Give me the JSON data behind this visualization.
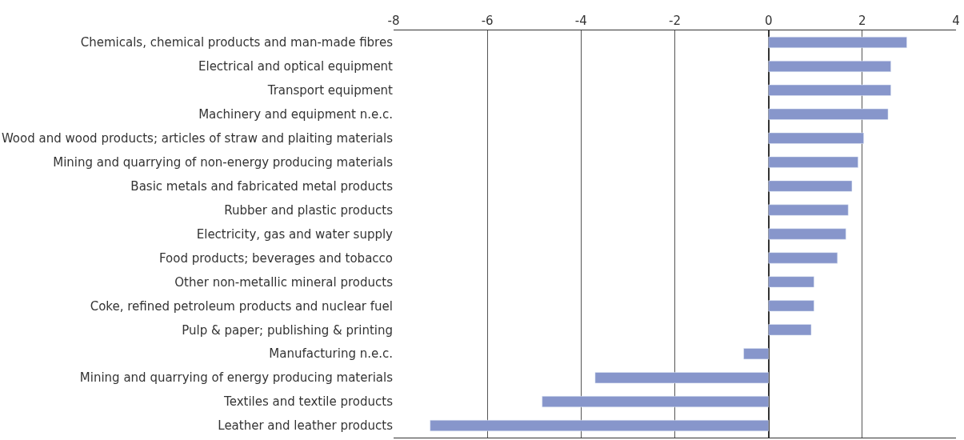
{
  "chart_data": {
    "type": "bar",
    "orientation": "horizontal",
    "categories": [
      "Chemicals, chemical products and man-made fibres",
      "Electrical and optical equipment",
      "Transport equipment",
      "Machinery and equipment n.e.c.",
      "Wood and wood products; articles of straw and plaiting materials",
      "Mining and quarrying of non-energy producing materials",
      "Basic metals and fabricated metal products",
      "Rubber and plastic products",
      "Electricity, gas and water supply",
      "Food products; beverages and tobacco",
      "Other non-metallic mineral products",
      "Coke, refined petroleum products and nuclear fuel",
      "Pulp & paper; publishing & printing",
      "Manufacturing n.e.c.",
      "Mining and quarrying of energy producing materials",
      "Textiles and textile products",
      "Leather and leather products"
    ],
    "values": [
      2.95,
      2.61,
      2.61,
      2.55,
      2.03,
      1.91,
      1.78,
      1.7,
      1.65,
      1.47,
      0.97,
      0.97,
      0.91,
      -0.53,
      -3.7,
      -4.83,
      -7.22
    ],
    "color": "#8796cb",
    "xlim": [
      -8,
      4
    ],
    "xticks": [
      -8,
      -6,
      -4,
      -2,
      0,
      2,
      4
    ],
    "grid": "x"
  }
}
